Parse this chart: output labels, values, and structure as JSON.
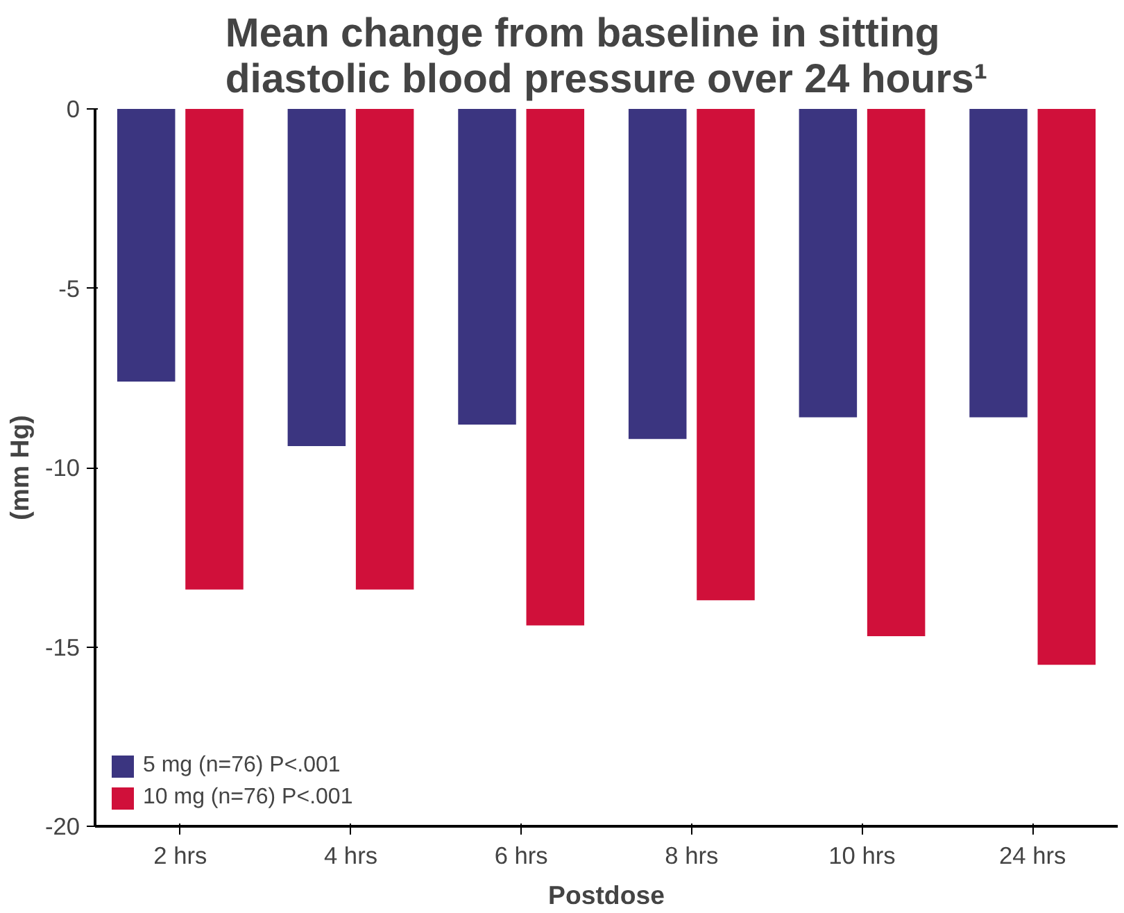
{
  "chart_data": {
    "type": "bar",
    "title": "Mean change from baseline in sitting diastolic blood pressure over 24 hours¹",
    "xlabel": "Postdose",
    "ylabel": "(mm Hg)",
    "categories": [
      "2 hrs",
      "4 hrs",
      "6 hrs",
      "8 hrs",
      "10 hrs",
      "24 hrs"
    ],
    "series": [
      {
        "name": "5 mg (n=76) P<.001",
        "color": "#3b3580",
        "values": [
          -7.6,
          -9.4,
          -8.8,
          -9.2,
          -8.6,
          -8.6
        ]
      },
      {
        "name": "10 mg (n=76) P<.001",
        "color": "#d0103a",
        "values": [
          -13.4,
          -13.4,
          -14.4,
          -13.7,
          -14.7,
          -15.5
        ]
      }
    ],
    "ylim": [
      -20,
      0
    ],
    "yticks": [
      0,
      -5,
      -10,
      -15,
      -20
    ],
    "grid": false,
    "legend": "bottom left"
  }
}
